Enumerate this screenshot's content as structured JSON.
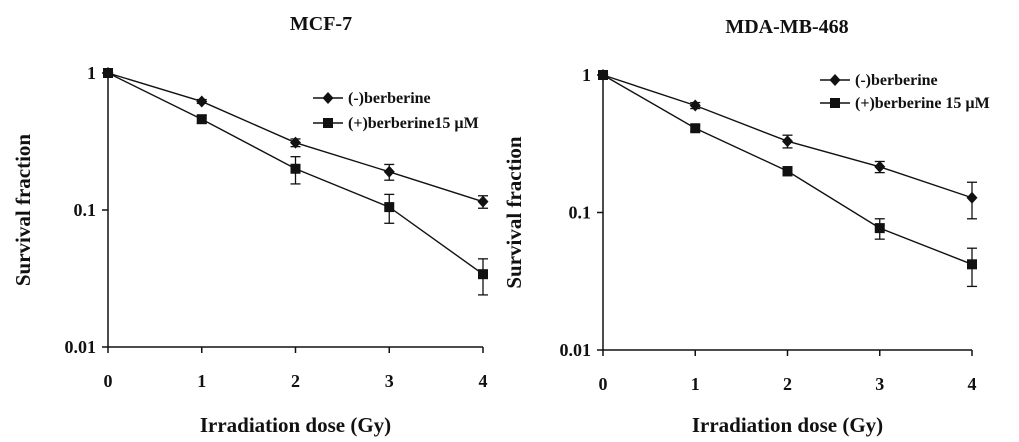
{
  "chart_data": [
    {
      "type": "line",
      "title": "MCF-7",
      "xlabel": "Irradiation dose (Gy)",
      "ylabel": "Survival fraction",
      "x": [
        0,
        1,
        2,
        3,
        4
      ],
      "xticks": [
        "0",
        "1",
        "2",
        "3",
        "4"
      ],
      "yscale": "log",
      "ylim": [
        0.01,
        1
      ],
      "yticks": [
        "0.01",
        "0.1",
        "1"
      ],
      "grid": false,
      "legend_position": "top-right",
      "series": [
        {
          "name": "(-)berberine",
          "marker": "diamond",
          "values": [
            1.0,
            0.62,
            0.31,
            0.19,
            0.115
          ],
          "error": [
            0,
            0.02,
            0.02,
            0.025,
            0.012
          ]
        },
        {
          "name": "(+)berberine15 µM",
          "marker": "square",
          "values": [
            1.0,
            0.46,
            0.2,
            0.105,
            0.034
          ],
          "error": [
            0,
            0.03,
            0.045,
            0.025,
            0.01
          ]
        }
      ]
    },
    {
      "type": "line",
      "title": "MDA-MB-468",
      "xlabel": "Irradiation dose (Gy)",
      "ylabel": "Survival fraction",
      "x": [
        0,
        1,
        2,
        3,
        4
      ],
      "xticks": [
        "0",
        "1",
        "2",
        "3",
        "4"
      ],
      "yscale": "log",
      "ylim": [
        0.01,
        1
      ],
      "yticks": [
        "0.01",
        "0.1",
        "1"
      ],
      "grid": false,
      "legend_position": "top-right",
      "series": [
        {
          "name": "(-)berberine",
          "marker": "diamond",
          "values": [
            1.0,
            0.6,
            0.33,
            0.215,
            0.128
          ],
          "error": [
            0,
            0.03,
            0.035,
            0.02,
            0.038
          ]
        },
        {
          "name": "(+)berberine 15 µM",
          "marker": "square",
          "values": [
            1.0,
            0.41,
            0.2,
            0.077,
            0.042
          ],
          "error": [
            0,
            0.02,
            0.015,
            0.013,
            0.013
          ]
        }
      ]
    }
  ]
}
